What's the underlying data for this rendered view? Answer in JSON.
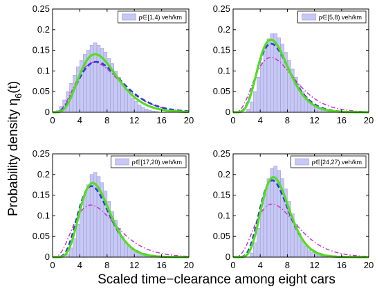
{
  "figure": {
    "ylabel": "Probability density η",
    "ylabel_sub": "6",
    "ylabel_arg": "(t)",
    "xlabel": "Scaled time−clearance among eight cars"
  },
  "chart_data": [
    {
      "type": "bar",
      "legend": "ρ∈[1,4) veh/km",
      "xlim": [
        0,
        20
      ],
      "ylim": [
        0,
        0.25
      ],
      "xticks": [
        "0",
        "4",
        "8",
        "12",
        "16",
        "20"
      ],
      "yticks": [
        "0",
        "0.05",
        "0.1",
        "0.15",
        "0.2",
        "0.25"
      ],
      "bin_width": 0.5,
      "bins": [
        0.75,
        1.25,
        1.75,
        2.25,
        2.75,
        3.25,
        3.75,
        4.25,
        4.75,
        5.25,
        5.75,
        6.25,
        6.75,
        7.25,
        7.75,
        8.25,
        8.75,
        9.25,
        9.75,
        10.25,
        10.75,
        11.25,
        11.75,
        12.25,
        12.75,
        13.25,
        13.75,
        14.25,
        14.75,
        15.25
      ],
      "values": [
        0.004,
        0.014,
        0.03,
        0.05,
        0.07,
        0.09,
        0.11,
        0.125,
        0.14,
        0.15,
        0.162,
        0.168,
        0.162,
        0.155,
        0.145,
        0.13,
        0.118,
        0.1,
        0.085,
        0.07,
        0.055,
        0.045,
        0.035,
        0.026,
        0.018,
        0.012,
        0.008,
        0.005,
        0.003,
        0.002
      ],
      "curves": {
        "green": {
          "k": 6.0,
          "theta": 1.25
        },
        "blue": {
          "k": 5.0,
          "theta": 1.6
        },
        "magenta": {
          "k": 4.6,
          "theta": 1.7
        }
      }
    },
    {
      "type": "bar",
      "legend": "ρ∈[5,8) veh/km",
      "xlim": [
        0,
        20
      ],
      "ylim": [
        0,
        0.25
      ],
      "xticks": [
        "0",
        "4",
        "8",
        "12",
        "16",
        "20"
      ],
      "yticks": [
        "0",
        "0.05",
        "0.1",
        "0.15",
        "0.2",
        "0.25"
      ],
      "bin_width": 0.5,
      "bins": [
        2.25,
        2.75,
        3.25,
        3.75,
        4.25,
        4.75,
        5.25,
        5.75,
        6.25,
        6.75,
        7.25,
        7.75,
        8.25,
        8.75,
        9.25,
        9.75,
        10.25,
        10.75,
        11.25,
        11.75,
        12.25,
        12.75,
        13.25,
        13.75,
        14.25
      ],
      "values": [
        0.008,
        0.025,
        0.05,
        0.085,
        0.12,
        0.155,
        0.178,
        0.19,
        0.19,
        0.18,
        0.165,
        0.145,
        0.125,
        0.105,
        0.085,
        0.066,
        0.05,
        0.037,
        0.027,
        0.019,
        0.013,
        0.009,
        0.006,
        0.004,
        0.002
      ],
      "curves": {
        "green": {
          "k": 7.2,
          "theta": 0.9
        },
        "blue": {
          "k": 6.6,
          "theta": 1.0
        },
        "magenta": {
          "k": 4.6,
          "theta": 1.55
        }
      }
    },
    {
      "type": "bar",
      "legend": "ρ∈[17,20) veh/km",
      "xlim": [
        0,
        20
      ],
      "ylim": [
        0,
        0.25
      ],
      "xticks": [
        "0",
        "4",
        "8",
        "12",
        "16",
        "20"
      ],
      "yticks": [
        "0",
        "0.05",
        "0.1",
        "0.15",
        "0.2",
        "0.25"
      ],
      "bin_width": 0.5,
      "bins": [
        2.25,
        2.75,
        3.25,
        3.75,
        4.25,
        4.75,
        5.25,
        5.75,
        6.25,
        6.75,
        7.25,
        7.75,
        8.25,
        8.75,
        9.25,
        9.75,
        10.25,
        10.75,
        11.25,
        11.75,
        12.25,
        12.75,
        13.25,
        13.75
      ],
      "values": [
        0.006,
        0.022,
        0.045,
        0.08,
        0.115,
        0.15,
        0.175,
        0.2,
        0.205,
        0.195,
        0.18,
        0.16,
        0.135,
        0.11,
        0.09,
        0.07,
        0.05,
        0.036,
        0.025,
        0.017,
        0.011,
        0.007,
        0.004,
        0.002
      ],
      "curves": {
        "green": {
          "k": 8.2,
          "theta": 0.82
        },
        "blue": {
          "k": 7.2,
          "theta": 0.92
        },
        "magenta": {
          "k": 4.3,
          "theta": 1.7
        }
      }
    },
    {
      "type": "bar",
      "legend": "ρ∈[24,27) veh/km",
      "xlim": [
        0,
        20
      ],
      "ylim": [
        0,
        0.25
      ],
      "xticks": [
        "0",
        "4",
        "8",
        "12",
        "16",
        "20"
      ],
      "yticks": [
        "0",
        "0.05",
        "0.1",
        "0.15",
        "0.2",
        "0.25"
      ],
      "bin_width": 0.5,
      "bins": [
        2.75,
        3.25,
        3.75,
        4.25,
        4.75,
        5.25,
        5.75,
        6.25,
        6.75,
        7.25,
        7.75,
        8.25,
        8.75,
        9.25,
        9.75,
        10.25,
        10.75,
        11.25,
        11.75,
        12.25,
        12.75,
        13.25
      ],
      "values": [
        0.01,
        0.035,
        0.07,
        0.115,
        0.155,
        0.19,
        0.215,
        0.22,
        0.21,
        0.19,
        0.165,
        0.135,
        0.105,
        0.08,
        0.058,
        0.04,
        0.027,
        0.017,
        0.011,
        0.007,
        0.004,
        0.002
      ],
      "curves": {
        "green": {
          "k": 9.5,
          "theta": 0.7
        },
        "blue": {
          "k": 8.4,
          "theta": 0.78
        },
        "magenta": {
          "k": 4.6,
          "theta": 1.6
        }
      }
    }
  ]
}
